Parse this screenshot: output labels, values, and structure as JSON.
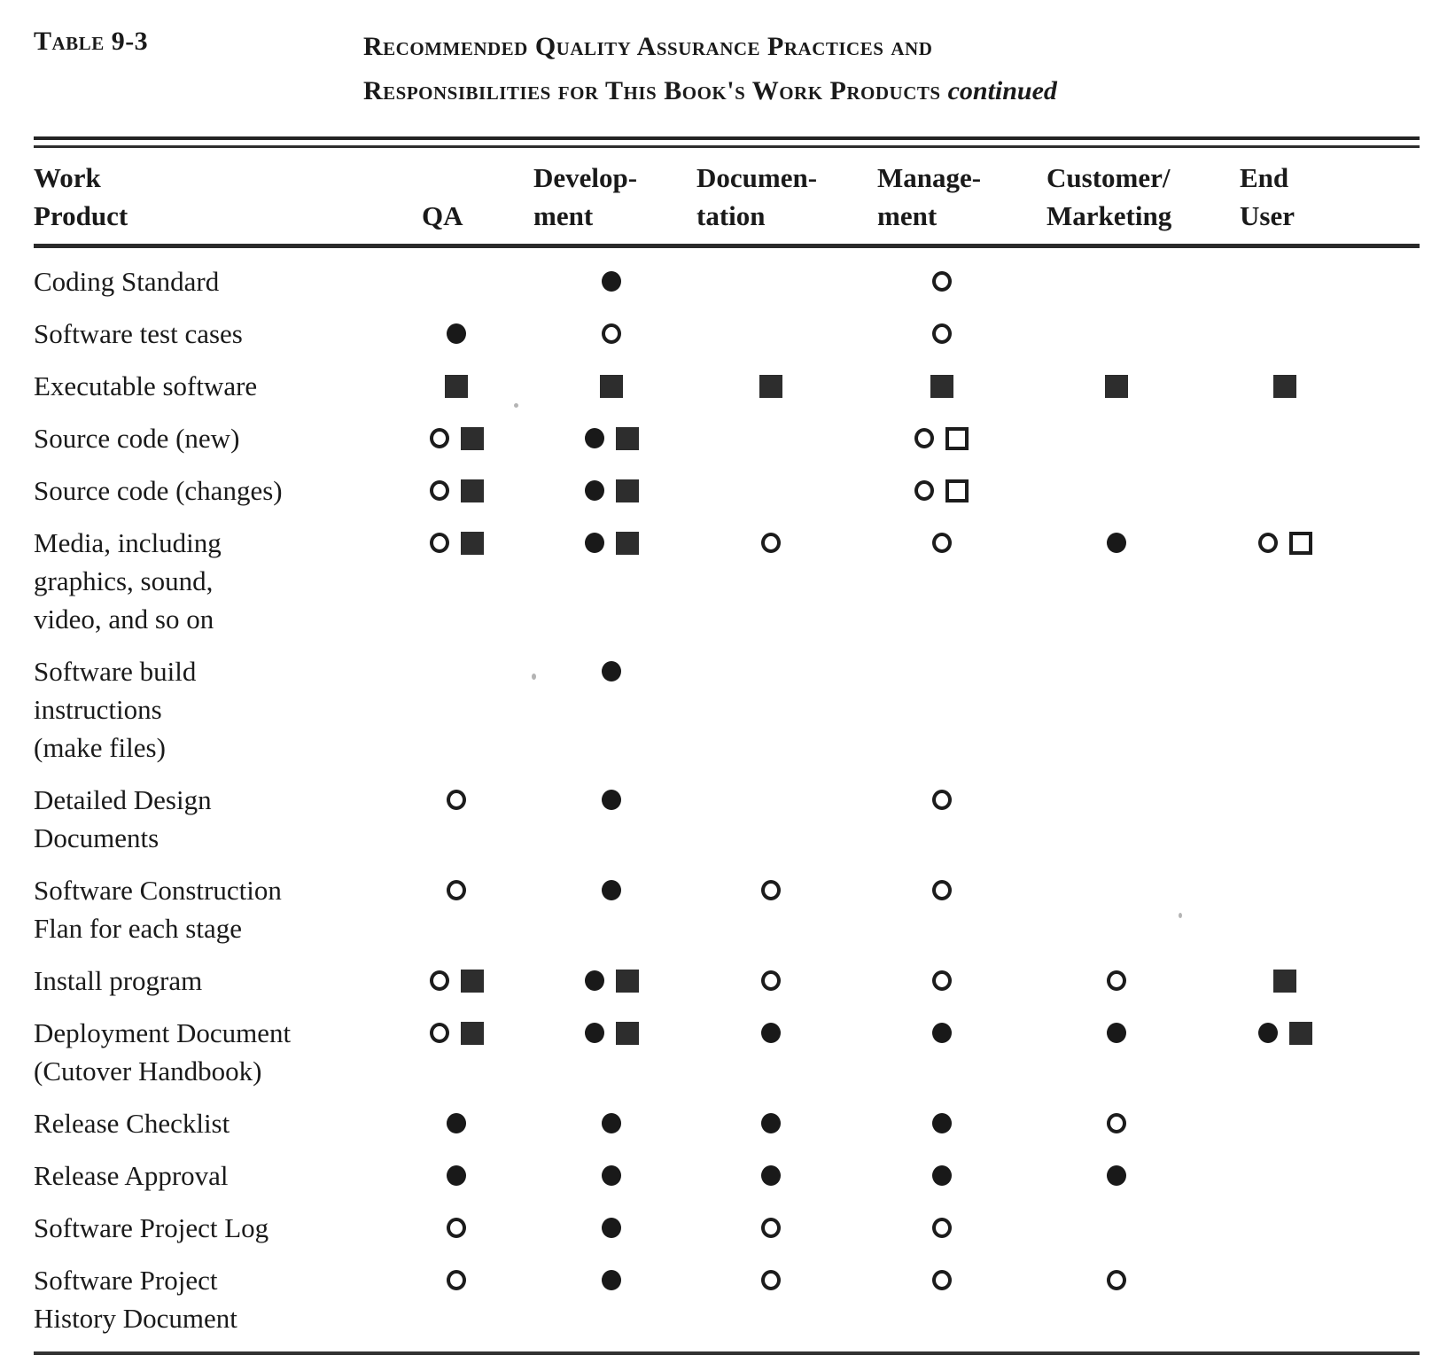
{
  "header": {
    "table_label": "Table 9-3",
    "title_line1": "Recommended Quality Assurance Practices and",
    "title_line2": "Responsibilities for This Book's Work Products",
    "continued": "continued"
  },
  "colors": {
    "ink": "#1a1a1a",
    "paper": "#ffffff"
  },
  "symbols_legend": {
    "filled-circle": "●",
    "open-circle": "○",
    "filled-square": "■",
    "open-square": "□"
  },
  "table": {
    "product_header": [
      "Work",
      "Product"
    ],
    "columns": [
      {
        "id": "qa",
        "label_lines": [
          "",
          "QA"
        ]
      },
      {
        "id": "development",
        "label_lines": [
          "Develop-",
          "ment"
        ]
      },
      {
        "id": "documentation",
        "label_lines": [
          "Documen-",
          "tation"
        ]
      },
      {
        "id": "management",
        "label_lines": [
          "Manage-",
          "ment"
        ]
      },
      {
        "id": "customer_marketing",
        "label_lines": [
          "Customer/",
          "Marketing"
        ]
      },
      {
        "id": "end_user",
        "label_lines": [
          "End",
          "User"
        ]
      }
    ],
    "rows": [
      {
        "product_lines": [
          "Coding Standard"
        ],
        "cells": [
          [],
          [
            "filled-circle"
          ],
          [],
          [
            "open-circle"
          ],
          [],
          []
        ]
      },
      {
        "product_lines": [
          "Software test cases"
        ],
        "cells": [
          [
            "filled-circle"
          ],
          [
            "open-circle"
          ],
          [],
          [
            "open-circle"
          ],
          [],
          []
        ]
      },
      {
        "product_lines": [
          "Executable software"
        ],
        "cells": [
          [
            "filled-square"
          ],
          [
            "filled-square"
          ],
          [
            "filled-square"
          ],
          [
            "filled-square"
          ],
          [
            "filled-square"
          ],
          [
            "filled-square"
          ]
        ]
      },
      {
        "product_lines": [
          "Source code (new)"
        ],
        "cells": [
          [
            "open-circle",
            "filled-square"
          ],
          [
            "filled-circle",
            "filled-square"
          ],
          [],
          [
            "open-circle",
            "open-square"
          ],
          [],
          []
        ]
      },
      {
        "product_lines": [
          "Source code (changes)"
        ],
        "cells": [
          [
            "open-circle",
            "filled-square"
          ],
          [
            "filled-circle",
            "filled-square"
          ],
          [],
          [
            "open-circle",
            "open-square"
          ],
          [],
          []
        ]
      },
      {
        "product_lines": [
          "Media, including",
          "graphics, sound,",
          "video, and so on"
        ],
        "cells": [
          [
            "open-circle",
            "filled-square"
          ],
          [
            "filled-circle",
            "filled-square"
          ],
          [
            "open-circle"
          ],
          [
            "open-circle"
          ],
          [
            "filled-circle"
          ],
          [
            "open-circle",
            "open-square"
          ]
        ]
      },
      {
        "product_lines": [
          "Software  build",
          "instructions",
          "(make files)"
        ],
        "cells": [
          [],
          [
            "filled-circle"
          ],
          [],
          [],
          [],
          []
        ]
      },
      {
        "product_lines": [
          "Detailed Design",
          "Documents"
        ],
        "cells": [
          [
            "open-circle"
          ],
          [
            "filled-circle"
          ],
          [],
          [
            "open-circle"
          ],
          [],
          []
        ]
      },
      {
        "product_lines": [
          "Software  Construction",
          "Flan for each stage"
        ],
        "cells": [
          [
            "open-circle"
          ],
          [
            "filled-circle"
          ],
          [
            "open-circle"
          ],
          [
            "open-circle"
          ],
          [],
          []
        ]
      },
      {
        "product_lines": [
          "Install program"
        ],
        "cells": [
          [
            "open-circle",
            "filled-square"
          ],
          [
            "filled-circle",
            "filled-square"
          ],
          [
            "open-circle"
          ],
          [
            "open-circle"
          ],
          [
            "open-circle"
          ],
          [
            "filled-square"
          ]
        ]
      },
      {
        "product_lines": [
          "Deployment Document",
          "(Cutover  Handbook)"
        ],
        "cells": [
          [
            "open-circle",
            "filled-square"
          ],
          [
            "filled-circle",
            "filled-square"
          ],
          [
            "filled-circle"
          ],
          [
            "filled-circle"
          ],
          [
            "filled-circle"
          ],
          [
            "filled-circle",
            "filled-square"
          ]
        ]
      },
      {
        "product_lines": [
          "Release  Checklist"
        ],
        "cells": [
          [
            "filled-circle"
          ],
          [
            "filled-circle"
          ],
          [
            "filled-circle"
          ],
          [
            "filled-circle"
          ],
          [
            "open-circle"
          ],
          []
        ]
      },
      {
        "product_lines": [
          "Release  Approval"
        ],
        "cells": [
          [
            "filled-circle"
          ],
          [
            "filled-circle"
          ],
          [
            "filled-circle"
          ],
          [
            "filled-circle"
          ],
          [
            "filled-circle"
          ],
          []
        ]
      },
      {
        "product_lines": [
          "Software Project Log"
        ],
        "cells": [
          [
            "open-circle"
          ],
          [
            "filled-circle"
          ],
          [
            "open-circle"
          ],
          [
            "open-circle"
          ],
          [],
          []
        ]
      },
      {
        "product_lines": [
          "Software Project",
          "History Document"
        ],
        "cells": [
          [
            "open-circle"
          ],
          [
            "filled-circle"
          ],
          [
            "open-circle"
          ],
          [
            "open-circle"
          ],
          [
            "open-circle"
          ],
          []
        ]
      }
    ]
  }
}
